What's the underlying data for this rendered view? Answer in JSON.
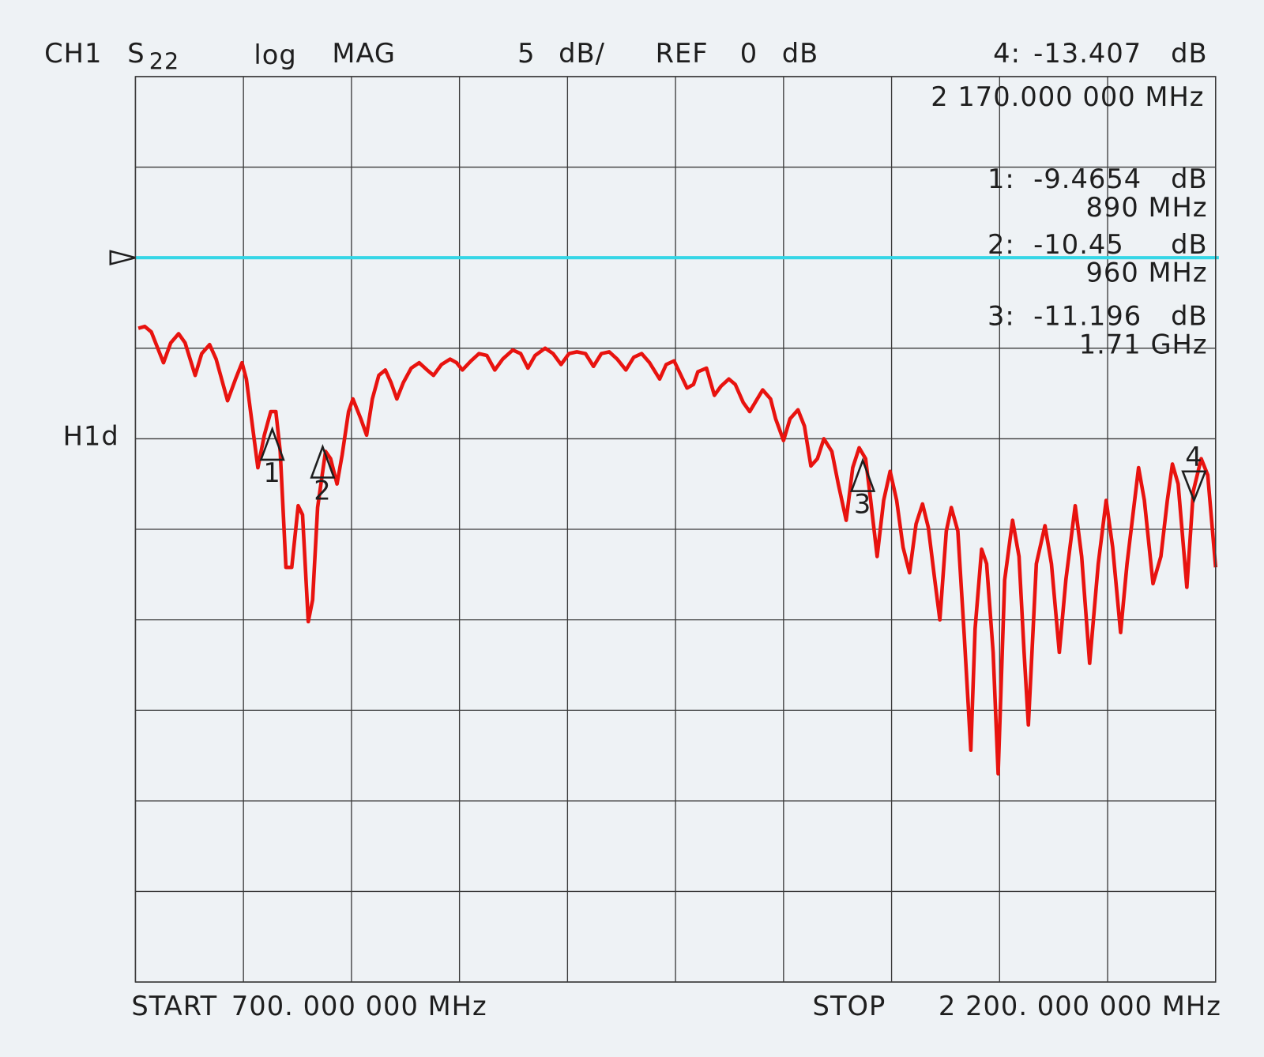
{
  "chart_data": {
    "type": "line",
    "channel": "CH1",
    "param": "S",
    "param_sub": "22",
    "format": "log",
    "format_kind": "MAG",
    "scale": 5,
    "scale_unit": "dB/",
    "ref_label": "REF",
    "ref_level": 0,
    "ref_unit": "dB",
    "ref_color": "#35d6e6",
    "side_label": "H1d",
    "start_label": "START",
    "start_text": "700. 000 000 MHz",
    "stop_label": "STOP",
    "stop_text": "2 200. 000 000 MHz",
    "xlim": [
      700,
      2200
    ],
    "ylim": [
      -40,
      10
    ],
    "xticks": [
      700,
      850,
      1000,
      1150,
      1300,
      1450,
      1600,
      1750,
      1900,
      2050,
      2200
    ],
    "yticks": [
      10,
      5,
      0,
      -5,
      -10,
      -15,
      -20,
      -25,
      -30,
      -35,
      -40
    ],
    "grid": true,
    "markers": [
      {
        "id": "1",
        "readout": "1:",
        "value": -9.4654,
        "unit": "dB",
        "x": 890,
        "x_label": "890 MHz",
        "direction": "up"
      },
      {
        "id": "2",
        "readout": "2:",
        "value": -10.45,
        "unit": "dB",
        "x": 960,
        "x_label": "960 MHz",
        "direction": "up"
      },
      {
        "id": "3",
        "readout": "3:",
        "value": -11.196,
        "unit": "dB",
        "x": 1710,
        "x_label": "1.71 GHz",
        "direction": "up"
      },
      {
        "id": "4",
        "readout": "4:",
        "value": -13.407,
        "unit": "dB",
        "x": 2170,
        "x_label": "2 170.000 000 MHz",
        "direction": "down"
      }
    ],
    "x": [
      704,
      713,
      722,
      739,
      749,
      760,
      769,
      783,
      792,
      803,
      812,
      828,
      839,
      848,
      854,
      870,
      879,
      888,
      895,
      901,
      909,
      917,
      926,
      932,
      940,
      946,
      953,
      964,
      971,
      980,
      987,
      996,
      1002,
      1013,
      1021,
      1029,
      1038,
      1047,
      1055,
      1063,
      1072,
      1083,
      1094,
      1105,
      1114,
      1125,
      1137,
      1146,
      1154,
      1166,
      1177,
      1188,
      1199,
      1210,
      1224,
      1235,
      1245,
      1255,
      1269,
      1280,
      1291,
      1302,
      1313,
      1325,
      1336,
      1347,
      1358,
      1369,
      1381,
      1392,
      1403,
      1414,
      1428,
      1437,
      1448,
      1454,
      1466,
      1475,
      1481,
      1493,
      1504,
      1513,
      1524,
      1533,
      1544,
      1553,
      1562,
      1571,
      1582,
      1589,
      1600,
      1609,
      1620,
      1629,
      1638,
      1647,
      1656,
      1667,
      1676,
      1687,
      1696,
      1705,
      1714,
      1721,
      1730,
      1739,
      1748,
      1757,
      1766,
      1775,
      1784,
      1793,
      1801,
      1810,
      1817,
      1826,
      1833,
      1842,
      1851,
      1860,
      1866,
      1875,
      1882,
      1891,
      1898,
      1907,
      1918,
      1927,
      1934,
      1940,
      1951,
      1963,
      1972,
      1983,
      1992,
      2005,
      2014,
      2025,
      2037,
      2048,
      2057,
      2068,
      2077,
      2093,
      2101,
      2113,
      2124,
      2133,
      2140,
      2148,
      2160,
      2169,
      2180,
      2189,
      2200
    ],
    "series": [
      {
        "color": "#e8130f",
        "values": [
          -3.9,
          -3.8,
          -4.1,
          -5.8,
          -4.7,
          -4.2,
          -4.7,
          -6.5,
          -5.3,
          -4.8,
          -5.6,
          -7.9,
          -6.7,
          -5.8,
          -6.7,
          -11.6,
          -9.8,
          -8.5,
          -8.5,
          -10.7,
          -17.1,
          -17.1,
          -13.7,
          -14.2,
          -20.1,
          -18.9,
          -13.8,
          -10.7,
          -11.1,
          -12.5,
          -10.9,
          -8.5,
          -7.8,
          -8.9,
          -9.8,
          -7.8,
          -6.5,
          -6.2,
          -6.9,
          -7.8,
          -6.9,
          -6.1,
          -5.8,
          -6.2,
          -6.5,
          -5.9,
          -5.6,
          -5.8,
          -6.2,
          -5.7,
          -5.3,
          -5.4,
          -6.2,
          -5.6,
          -5.1,
          -5.3,
          -6.1,
          -5.4,
          -5.0,
          -5.3,
          -5.9,
          -5.3,
          -5.2,
          -5.3,
          -6.0,
          -5.3,
          -5.2,
          -5.6,
          -6.2,
          -5.5,
          -5.3,
          -5.8,
          -6.7,
          -5.9,
          -5.7,
          -6.2,
          -7.2,
          -7.0,
          -6.3,
          -6.1,
          -7.6,
          -7.1,
          -6.7,
          -7.0,
          -8.0,
          -8.5,
          -7.9,
          -7.3,
          -7.8,
          -8.9,
          -10.1,
          -8.9,
          -8.4,
          -9.3,
          -11.5,
          -11.1,
          -10.0,
          -10.7,
          -12.5,
          -14.5,
          -11.6,
          -10.5,
          -11.1,
          -13.4,
          -16.5,
          -13.4,
          -11.8,
          -13.4,
          -16.0,
          -17.4,
          -14.7,
          -13.6,
          -14.9,
          -17.8,
          -20.0,
          -15.1,
          -13.8,
          -15.1,
          -20.9,
          -27.2,
          -20.5,
          -16.1,
          -16.9,
          -21.8,
          -28.5,
          -17.8,
          -14.5,
          -16.5,
          -21.8,
          -25.8,
          -16.9,
          -14.8,
          -16.9,
          -21.8,
          -17.8,
          -13.7,
          -16.5,
          -22.4,
          -16.9,
          -13.4,
          -16.0,
          -20.7,
          -16.9,
          -11.6,
          -13.4,
          -18.0,
          -16.5,
          -13.4,
          -11.4,
          -12.5,
          -18.2,
          -12.9,
          -11.1,
          -12.0,
          -17.1
        ]
      }
    ]
  }
}
